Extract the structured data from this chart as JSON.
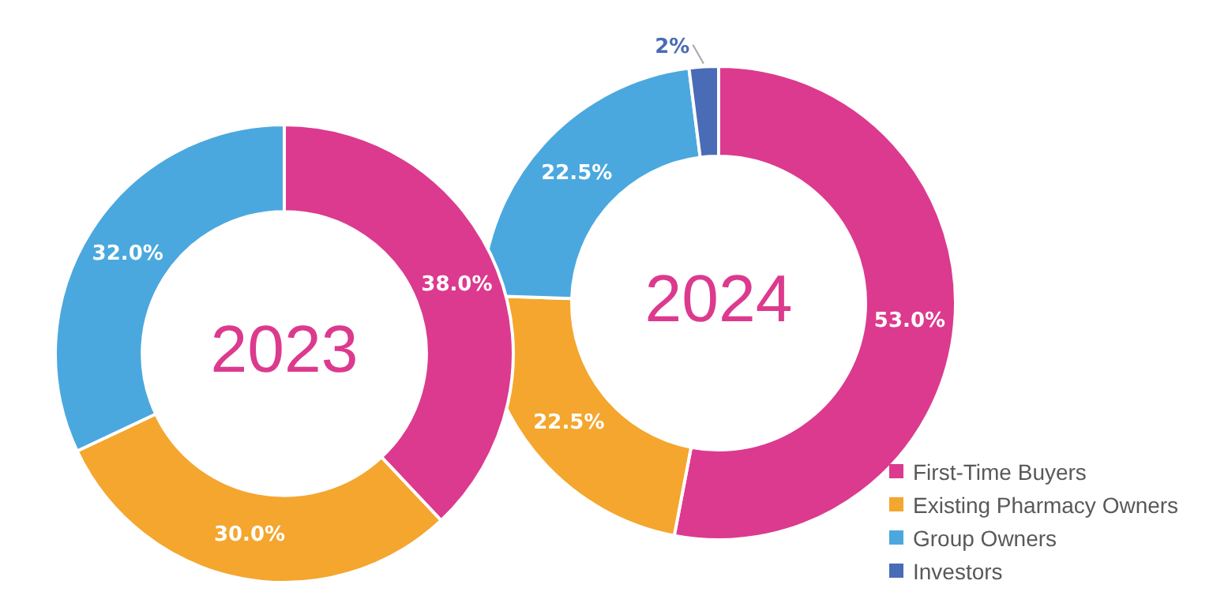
{
  "chart_data": [
    {
      "type": "donut",
      "title": "2023",
      "categories": [
        null,
        null,
        null
      ],
      "values": [
        38,
        30,
        32
      ],
      "colors": [
        "#dc3a8e",
        "#f4a62e",
        "#4aa8de"
      ],
      "value_labels": [
        "38.0%",
        "30.0%",
        "32.0%"
      ],
      "legend": false
    },
    {
      "type": "donut",
      "title": "2024",
      "categories": [
        "First-Time Buyers",
        "Existing Pharmacy Owners",
        "Group Owners",
        "Investors"
      ],
      "values": [
        53,
        22.5,
        22.5,
        2
      ],
      "colors": [
        "#dc3a8e",
        "#f4a62e",
        "#4aa8de",
        "#4a6bb5"
      ],
      "value_labels": [
        "53.0%",
        "22.5%",
        "22.5%",
        "2%"
      ],
      "legend": "bottom right"
    }
  ]
}
